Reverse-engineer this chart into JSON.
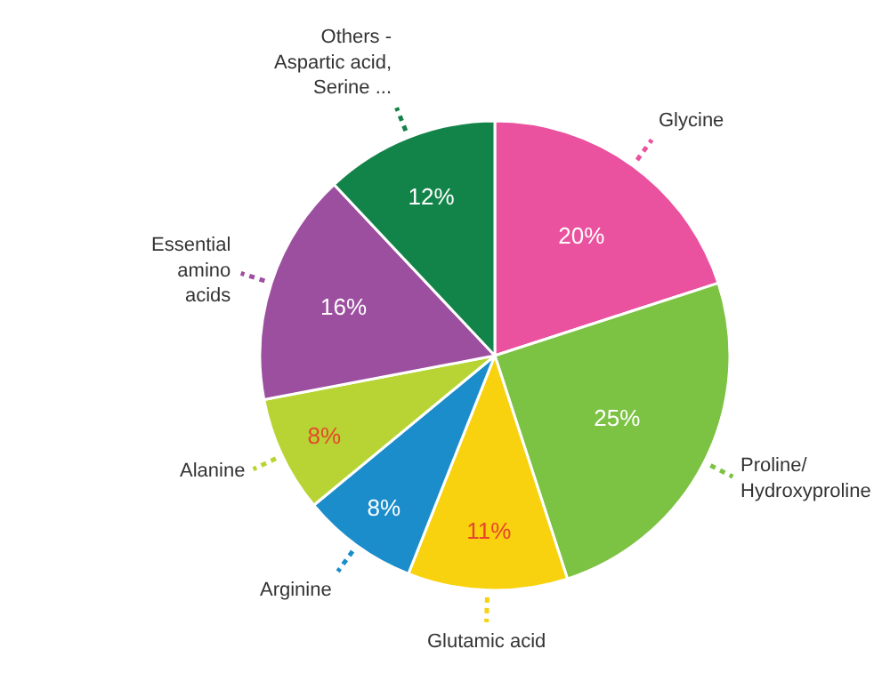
{
  "chart_data": {
    "type": "pie",
    "categories": [
      "Glycine",
      "Proline/\nHydroxyproline",
      "Glutamic acid",
      "Arginine",
      "Alanine",
      "Essential\namino\nacids",
      "Others -\nAspartic acid,\nSerine ..."
    ],
    "values": [
      20,
      25,
      11,
      8,
      8,
      16,
      12
    ],
    "colors": [
      "#ea519e",
      "#7cc243",
      "#f8d20f",
      "#1b8dcb",
      "#b8d434",
      "#9d4f9f",
      "#138449"
    ],
    "value_labels": [
      "20%",
      "25%",
      "11%",
      "8%",
      "8%",
      "16%",
      "12%"
    ],
    "legend": false
  }
}
